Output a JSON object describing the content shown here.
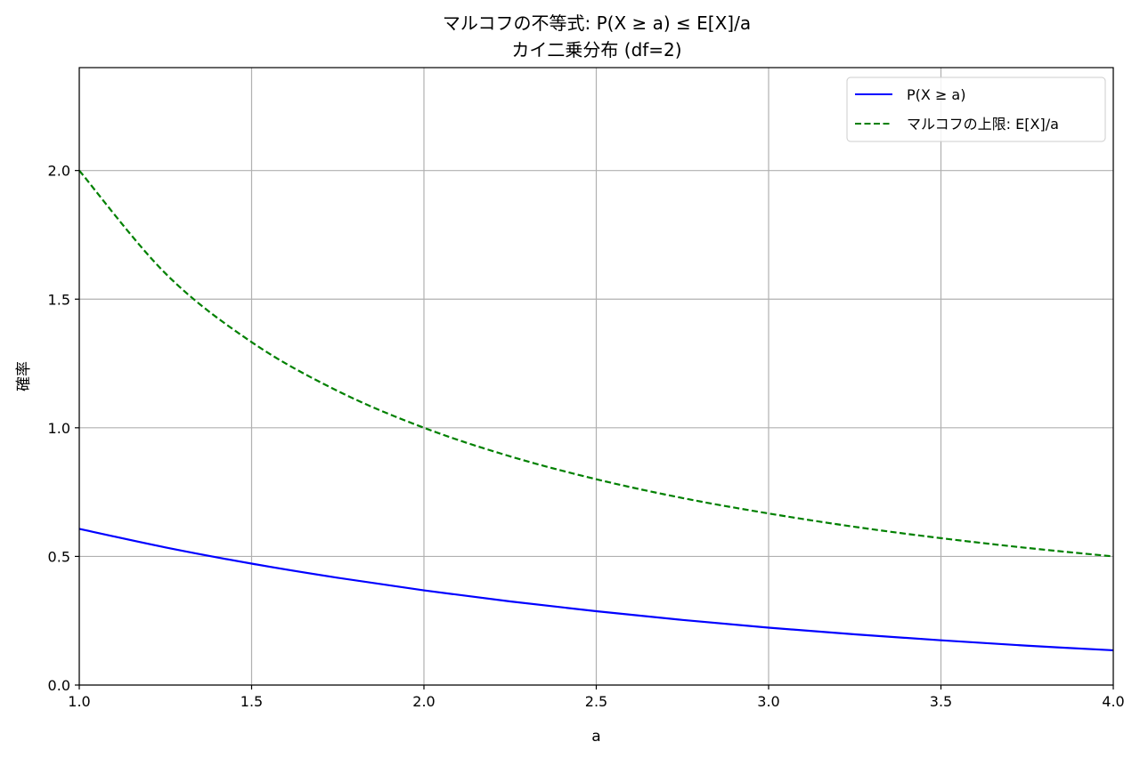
{
  "chart_data": {
    "type": "line",
    "title": "マルコフの不等式: P(X ≥ a) ≤ E[X]/a",
    "subtitle": "カイ二乗分布 (df=2)",
    "xlabel": "a",
    "ylabel": "確率",
    "xlim": [
      1.0,
      4.0
    ],
    "ylim": [
      0.0,
      2.4
    ],
    "xticks": [
      "1.0",
      "1.5",
      "2.0",
      "2.5",
      "3.0",
      "3.5",
      "4.0"
    ],
    "yticks": [
      "0.0",
      "0.5",
      "1.0",
      "1.5",
      "2.0"
    ],
    "grid": true,
    "legend_position": "top-right",
    "series": [
      {
        "name": "P(X ≥ a)",
        "color": "#0000ff",
        "style": "solid",
        "x": [
          1.0,
          1.25,
          1.5,
          1.75,
          2.0,
          2.25,
          2.5,
          2.75,
          3.0,
          3.25,
          3.5,
          3.75,
          4.0
        ],
        "y": [
          0.607,
          0.535,
          0.472,
          0.417,
          0.368,
          0.325,
          0.287,
          0.253,
          0.223,
          0.197,
          0.174,
          0.153,
          0.135
        ]
      },
      {
        "name": "マルコフの上限: E[X]/a",
        "color": "#008000",
        "style": "dashed",
        "x": [
          1.0,
          1.25,
          1.5,
          1.75,
          2.0,
          2.25,
          2.5,
          2.75,
          3.0,
          3.25,
          3.5,
          3.75,
          4.0
        ],
        "y": [
          2.0,
          1.6,
          1.333,
          1.143,
          1.0,
          0.889,
          0.8,
          0.727,
          0.667,
          0.615,
          0.571,
          0.533,
          0.5
        ]
      }
    ]
  }
}
